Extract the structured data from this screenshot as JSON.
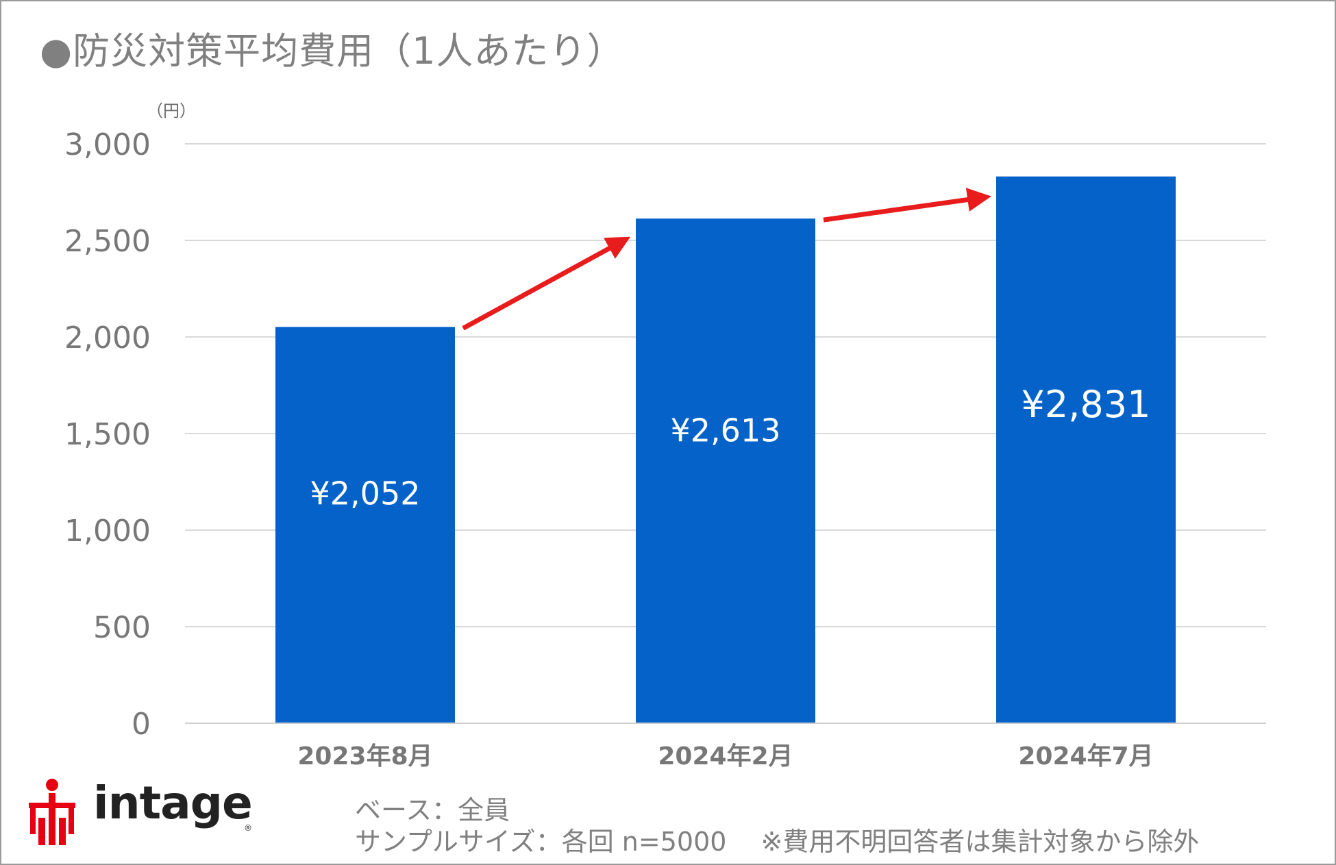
{
  "title": "●防災対策平均費用（1人あたり）",
  "unit_label": "（円）",
  "colors": {
    "bar": "#0562c8",
    "arrow": "#e81c1c",
    "grid": "#d9d9d9",
    "axis_text": "#777777"
  },
  "chart_data": {
    "type": "bar",
    "title": "防災対策平均費用（1人あたり）",
    "ylabel": "（円）",
    "ylim": [
      0,
      3000
    ],
    "yticks": [
      0,
      500,
      1000,
      1500,
      2000,
      2500,
      3000
    ],
    "ytick_labels": [
      "0",
      "500",
      "1,000",
      "1,500",
      "2,000",
      "2,500",
      "3,000"
    ],
    "categories": [
      "2023年8月",
      "2024年2月",
      "2024年7月"
    ],
    "values": [
      2052,
      2613,
      2831
    ],
    "data_labels": [
      "¥2,052",
      "¥2,613",
      "¥2,831"
    ],
    "grid": true,
    "legend": "none",
    "annotations": "red arrows between consecutive bars indicating increase"
  },
  "footer": {
    "base": "ベース：全員",
    "sample": "サンプルサイズ：各回 n=5000　 ※費用不明回答者は集計対象から除外"
  },
  "logo": {
    "icon": "intage-logo-mark",
    "text": "intage",
    "reg": "®"
  }
}
